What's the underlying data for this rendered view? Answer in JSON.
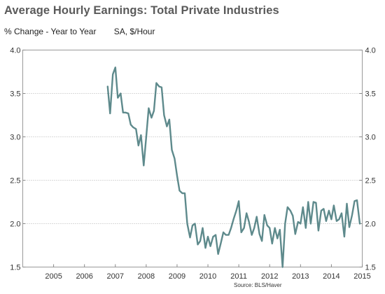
{
  "chart_data": {
    "type": "line",
    "title": "Average Hourly Earnings: Total Private Industries",
    "subtitle_left": "% Change - Year to Year",
    "subtitle_right": "SA, $/Hour",
    "source": "Source: BLS/Haver",
    "xlim": [
      2004.0,
      2015.0
    ],
    "ylim": [
      1.5,
      4.0
    ],
    "x_ticks": [
      2005,
      2006,
      2007,
      2008,
      2009,
      2010,
      2011,
      2012,
      2013,
      2014,
      2015
    ],
    "y_ticks": [
      1.5,
      2.0,
      2.5,
      3.0,
      3.5,
      4.0
    ],
    "y_tick_labels": [
      "1.5",
      "2.0",
      "2.5",
      "3.0",
      "3.5",
      "4.0"
    ],
    "grid": true,
    "line_color": "#5e8a8c",
    "series": [
      {
        "x": [
          2006.75,
          2006.83,
          2006.92,
          2007.0,
          2007.08,
          2007.17,
          2007.25,
          2007.33,
          2007.42,
          2007.5,
          2007.58,
          2007.67,
          2007.75,
          2007.83,
          2007.92,
          2008.0,
          2008.08,
          2008.17,
          2008.25,
          2008.33,
          2008.42,
          2008.5,
          2008.58,
          2008.67,
          2008.75,
          2008.83,
          2008.92,
          2009.0,
          2009.08,
          2009.17,
          2009.25,
          2009.33,
          2009.42,
          2009.5,
          2009.58,
          2009.67,
          2009.75,
          2009.83,
          2009.92,
          2010.0,
          2010.08,
          2010.17,
          2010.25,
          2010.33,
          2010.42,
          2010.5,
          2010.58,
          2010.67,
          2010.75,
          2010.83,
          2010.92,
          2011.0,
          2011.08,
          2011.17,
          2011.25,
          2011.33,
          2011.42,
          2011.5,
          2011.58,
          2011.67,
          2011.75,
          2011.83,
          2011.92,
          2012.0,
          2012.08,
          2012.17,
          2012.25,
          2012.33,
          2012.42,
          2012.5,
          2012.58,
          2012.67,
          2012.75,
          2012.83,
          2012.92,
          2013.0,
          2013.08,
          2013.17,
          2013.25,
          2013.33,
          2013.42,
          2013.5,
          2013.58,
          2013.67,
          2013.75,
          2013.83,
          2013.92,
          2014.0,
          2014.08,
          2014.17,
          2014.25,
          2014.33,
          2014.42,
          2014.5,
          2014.58,
          2014.67,
          2014.75,
          2014.83,
          2014.92
        ],
        "values": [
          3.58,
          3.27,
          3.72,
          3.8,
          3.45,
          3.5,
          3.28,
          3.28,
          3.27,
          3.14,
          3.11,
          3.09,
          2.9,
          3.02,
          2.67,
          3.0,
          3.33,
          3.22,
          3.3,
          3.62,
          3.58,
          3.57,
          3.25,
          3.12,
          3.2,
          2.85,
          2.75,
          2.55,
          2.38,
          2.35,
          2.35,
          2.0,
          1.84,
          1.98,
          2.0,
          1.76,
          1.8,
          1.95,
          1.72,
          1.85,
          1.74,
          1.85,
          1.87,
          1.65,
          1.78,
          1.9,
          1.87,
          1.87,
          1.95,
          2.05,
          2.15,
          2.26,
          1.9,
          1.95,
          2.12,
          2.02,
          1.87,
          1.95,
          2.08,
          1.88,
          1.8,
          2.1,
          1.98,
          1.95,
          1.77,
          1.95,
          1.83,
          1.93,
          1.5,
          2.0,
          2.19,
          2.15,
          2.09,
          1.88,
          2.02,
          2.0,
          2.19,
          1.95,
          2.25,
          2.0,
          2.25,
          2.24,
          1.92,
          2.15,
          2.17,
          2.03,
          2.15,
          2.05,
          2.21,
          2.03,
          2.05,
          2.12,
          1.85,
          2.23,
          1.96,
          2.1,
          2.26,
          2.27,
          2.0
        ]
      }
    ]
  }
}
